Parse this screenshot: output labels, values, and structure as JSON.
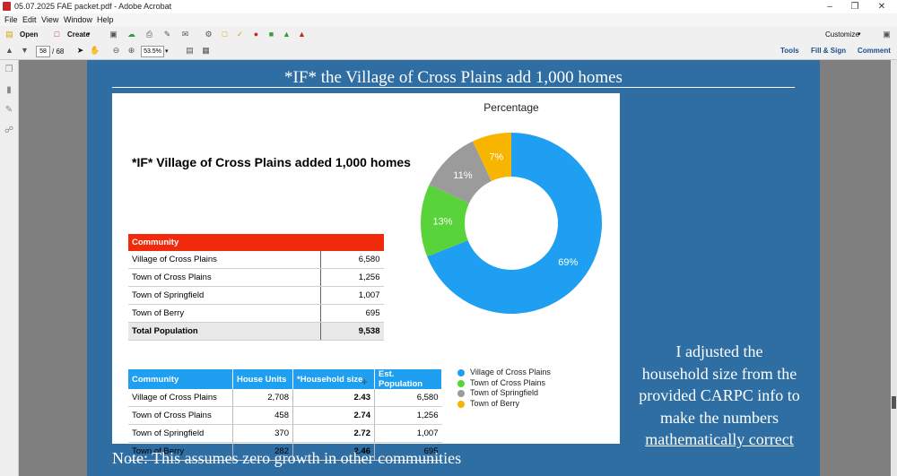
{
  "window": {
    "title": "05.07.2025 FAE packet.pdf - Adobe Acrobat"
  },
  "menu": [
    "File",
    "Edit",
    "View",
    "Window",
    "Help"
  ],
  "toolbar": {
    "open_label": "Open",
    "create_label": "Create",
    "customize_label": "Customize"
  },
  "nav": {
    "current_page": "58",
    "total_pages": "/ 68",
    "zoom": "53.5%"
  },
  "right_tabs": {
    "tools": "Tools",
    "fill_sign": "Fill & Sign",
    "comment": "Comment"
  },
  "slide": {
    "title": "*IF* the Village of Cross Plains add 1,000 homes",
    "panel_heading": "*IF* Village of Cross Plains added 1,000 homes",
    "side_note": [
      "I adjusted the",
      "household size from the",
      "provided CARPC info to",
      "make the numbers",
      "mathematically correct"
    ],
    "footer": "Note: This assumes zero growth in other communities"
  },
  "table1": {
    "header": "Community",
    "rows": [
      {
        "name": "Village of Cross Plains",
        "value": "6,580"
      },
      {
        "name": "Town of Cross Plains",
        "value": "1,256"
      },
      {
        "name": "Town of Springfield",
        "value": "1,007"
      },
      {
        "name": "Town of Berry",
        "value": "695"
      }
    ],
    "total": {
      "name": "Total Population",
      "value": "9,538"
    }
  },
  "table2": {
    "headers": [
      "Community",
      "House Units",
      "*Household size",
      "Est. Population"
    ],
    "rows": [
      [
        "Village of Cross Plains",
        "2,708",
        "2.43",
        "6,580"
      ],
      [
        "Town of Cross Plains",
        "458",
        "2.74",
        "1,256"
      ],
      [
        "Town of Springfield",
        "370",
        "2.72",
        "1,007"
      ],
      [
        "Town of Berry",
        "282",
        "2.46",
        "695"
      ]
    ]
  },
  "chart_data": {
    "type": "pie",
    "title": "Percentage",
    "categories": [
      "Village of Cross Plains",
      "Town of Cross Plains",
      "Town of Springfield",
      "Town of Berry"
    ],
    "values": [
      69,
      13,
      11,
      7
    ],
    "value_labels": [
      "69%",
      "13%",
      "11%",
      "7%"
    ],
    "colors": [
      "#1f9ff1",
      "#59d33a",
      "#9b9b9b",
      "#f7b500"
    ],
    "donut": true,
    "legend": "bottom"
  }
}
